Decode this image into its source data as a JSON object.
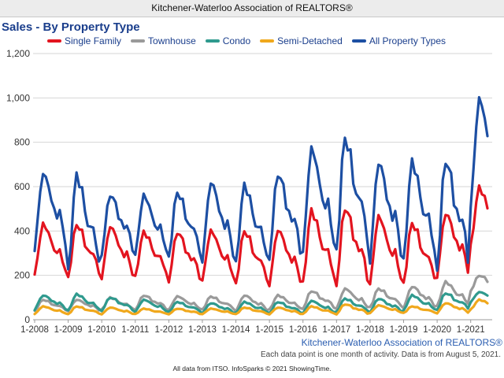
{
  "header": {
    "org_title": "Kitchener-Waterloo Association of REALTORS®"
  },
  "branding": {
    "association": "Kitchener-Waterloo Association of REALTORS®",
    "note": "Each data point is one month of activity. Data is from August 5, 2021.",
    "footer": "All data from ITSO. InfoSparks © 2021 ShowingTime."
  },
  "chart_data": {
    "type": "line",
    "title": "Sales - By Property Type",
    "xlabel": "",
    "ylabel": "",
    "ylim": [
      0,
      1200
    ],
    "yticks": [
      "0",
      "200",
      "400",
      "600",
      "800",
      "1,000",
      "1,200"
    ],
    "xticks": [
      "1-2008",
      "1-2009",
      "1-2010",
      "1-2011",
      "1-2012",
      "1-2013",
      "1-2014",
      "1-2015",
      "1-2016",
      "1-2017",
      "1-2018",
      "1-2019",
      "1-2020",
      "1-2021"
    ],
    "x_start": "2008-01",
    "x_end": "2021-07",
    "legend_position": "top",
    "grid": true,
    "series": [
      {
        "name": "Single Family",
        "color": "#e3141f",
        "annual_min": [
          200,
          190,
          190,
          190,
          175,
          175,
          160,
          160,
          160,
          160,
          160,
          160,
          200,
          330
        ],
        "annual_peak": [
          430,
          430,
          420,
          395,
          395,
          400,
          400,
          405,
          490,
          505,
          465,
          435,
          480,
          595
        ]
      },
      {
        "name": "Townhouse",
        "color": "#9a9a9a",
        "annual_min": [
          40,
          40,
          45,
          45,
          45,
          45,
          40,
          45,
          50,
          50,
          55,
          55,
          60,
          130
        ],
        "annual_peak": [
          90,
          90,
          100,
          110,
          105,
          105,
          110,
          110,
          130,
          140,
          140,
          150,
          170,
          200
        ]
      },
      {
        "name": "Condo",
        "color": "#2f9a8e",
        "annual_min": [
          45,
          40,
          40,
          35,
          35,
          30,
          30,
          30,
          30,
          35,
          35,
          40,
          45,
          80
        ],
        "annual_peak": [
          110,
          115,
          100,
          90,
          80,
          75,
          80,
          80,
          85,
          95,
          95,
          110,
          120,
          125
        ]
      },
      {
        "name": "Semi-Detached",
        "color": "#f0a81c",
        "annual_min": [
          25,
          25,
          25,
          25,
          25,
          25,
          25,
          25,
          25,
          25,
          30,
          30,
          30,
          45
        ],
        "annual_peak": [
          60,
          60,
          55,
          50,
          50,
          50,
          55,
          55,
          60,
          70,
          65,
          60,
          75,
          90
        ]
      },
      {
        "name": "All Property Types",
        "color": "#1d4fa3",
        "annual_min": [
          320,
          210,
          300,
          290,
          280,
          270,
          250,
          280,
          305,
          305,
          270,
          260,
          230,
          510
        ],
        "annual_peak": [
          660,
          650,
          565,
          560,
          575,
          620,
          605,
          660,
          770,
          820,
          710,
          710,
          720,
          995
        ]
      }
    ]
  }
}
